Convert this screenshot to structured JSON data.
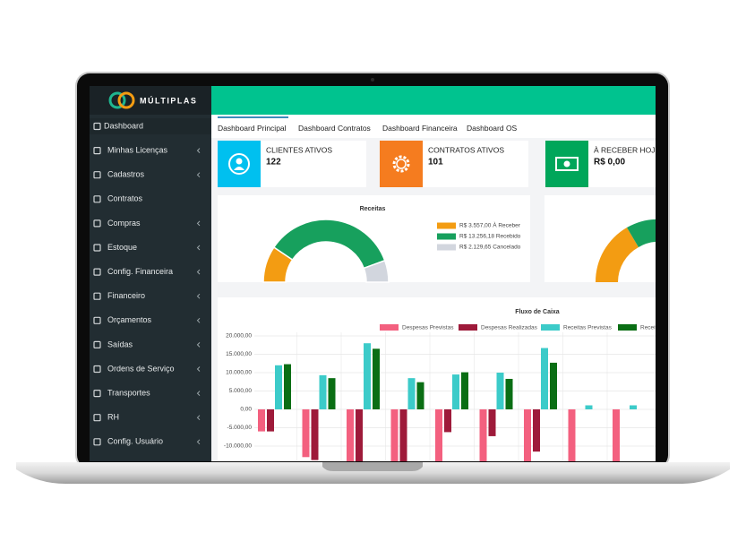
{
  "sidebar": {
    "brand": "MÚLTIPLAS",
    "menu": [
      {
        "label": "Dashboard",
        "submenu": false
      },
      {
        "label": "Minhas Licenças",
        "submenu": true
      },
      {
        "label": "Cadastros",
        "submenu": true
      },
      {
        "label": "Contratos",
        "submenu": false
      },
      {
        "label": "Compras",
        "submenu": true
      },
      {
        "label": "Estoque",
        "submenu": true
      },
      {
        "label": "Config. Financeira",
        "submenu": true
      },
      {
        "label": "Financeiro",
        "submenu": true
      },
      {
        "label": "Orçamentos",
        "submenu": true
      },
      {
        "label": "Saídas",
        "submenu": true
      },
      {
        "label": "Ordens de Serviço",
        "submenu": true
      },
      {
        "label": "Transportes",
        "submenu": true
      },
      {
        "label": "RH",
        "submenu": true
      },
      {
        "label": "Config. Usuário",
        "submenu": true
      }
    ]
  },
  "tabs": [
    "Dashboard Principal",
    "Dashboard Contratos",
    "Dashboard Financeira",
    "Dashboard OS"
  ],
  "info_boxes": [
    {
      "label": "CLIENTES ATIVOS",
      "value": 122,
      "color": "#00c0ef"
    },
    {
      "label": "CONTRATOS ATIVOS",
      "value": 101,
      "color": "#f57c1f"
    },
    {
      "label": "À RECEBER HOJE",
      "value": "R$ 0,00",
      "color": "#00a65a"
    }
  ],
  "receitas_chart": {
    "type": "donut",
    "title": "Receitas",
    "series": [
      {
        "name": "R$ 3.557,00 À Receber",
        "color": "#f39c12",
        "value": 3557
      },
      {
        "name": "R$ 13.256,18 Recebido",
        "color": "#17a05d",
        "value": 13256.18
      },
      {
        "name": "R$ 2.129,65 Cancelado",
        "color": "#d2d6de",
        "value": 2129.65
      }
    ]
  },
  "fluxo_chart": {
    "type": "bar",
    "title": "Fluxo de Caixa",
    "categories": [
      null,
      null,
      null,
      null,
      null,
      null,
      null,
      null,
      null
    ],
    "series": [
      {
        "name": "Despesas Previstas",
        "color": "#f3607f",
        "values": [
          -6000,
          -13000,
          -15000,
          -15000,
          -15000,
          -15000,
          -15000,
          -15000,
          -15000
        ]
      },
      {
        "name": "Despesas Realizadas",
        "color": "#9e1a3a",
        "values": [
          -6000,
          -13800,
          -15000,
          -15000,
          -6200,
          -7300,
          -11500,
          null,
          null
        ]
      },
      {
        "name": "Receitas Previstas",
        "color": "#3ccbc9",
        "values": [
          12000,
          9300,
          18000,
          8500,
          9500,
          10000,
          16700,
          1100,
          1100
        ]
      },
      {
        "name": "Receitas Realizadas",
        "color": "#0a6e14",
        "values": [
          12300,
          8500,
          16500,
          7400,
          10100,
          8300,
          12700,
          null,
          null
        ]
      }
    ],
    "ylim": [
      -14000,
      21000
    ],
    "yticks": [
      {
        "value": 20000,
        "label": "20.000,00"
      },
      {
        "value": 15000,
        "label": "15.000,00"
      },
      {
        "value": 10000,
        "label": "10.000,00"
      },
      {
        "value": 5000,
        "label": "5.000,00"
      },
      {
        "value": 0,
        "label": "0,00"
      },
      {
        "value": -5000,
        "label": "-5.000,00"
      },
      {
        "value": -10000,
        "label": "-10.000,00"
      }
    ],
    "grid": true
  }
}
